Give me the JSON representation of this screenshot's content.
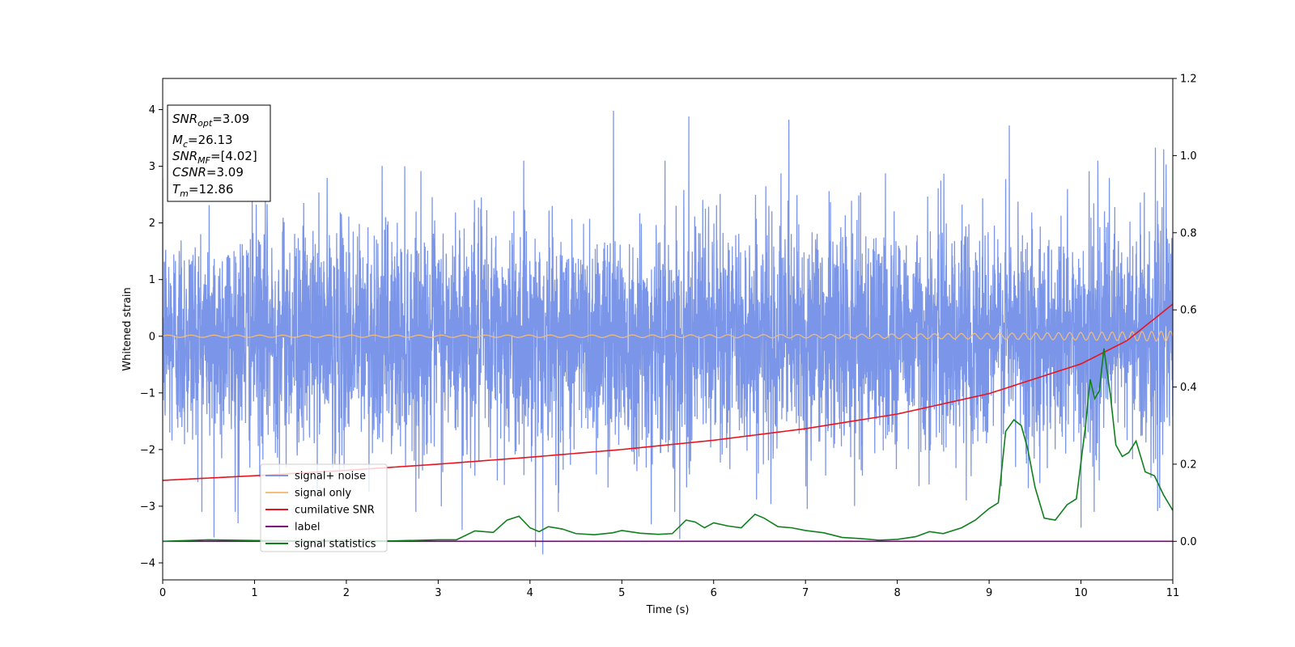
{
  "chart_data": {
    "type": "line",
    "title": "",
    "xlabel": "Time (s)",
    "ylabel": "Whitened strain",
    "xlim": [
      0,
      11
    ],
    "ylim_left": [
      -4.3,
      4.55
    ],
    "ylim_right": [
      -0.1,
      1.2
    ],
    "x_ticks": [
      "0",
      "1",
      "2",
      "3",
      "4",
      "5",
      "6",
      "7",
      "8",
      "9",
      "10",
      "11"
    ],
    "y_ticks_left": [
      "−4",
      "−3",
      "−2",
      "−1",
      "0",
      "1",
      "2",
      "3",
      "4"
    ],
    "y_ticks_right": [
      "0.0",
      "0.2",
      "0.4",
      "0.6",
      "0.8",
      "1.0",
      "1.2"
    ],
    "grid": false,
    "legend_position": "lower-left",
    "series": [
      {
        "name": "signal+ noise",
        "axis": "left",
        "color": "#7b96e8",
        "kind": "noise",
        "duration": 11,
        "std": 1.0,
        "notable_spikes": [
          [
            0.56,
            -3.55
          ],
          [
            0.82,
            -3.3
          ],
          [
            3.26,
            -3.42
          ],
          [
            4.06,
            -3.72
          ],
          [
            4.14,
            -3.85
          ],
          [
            4.91,
            3.98
          ],
          [
            5.32,
            -3.32
          ],
          [
            5.63,
            -3.58
          ],
          [
            5.73,
            3.88
          ],
          [
            6.82,
            3.82
          ],
          [
            7.02,
            -3.05
          ],
          [
            9.22,
            3.72
          ],
          [
            10.0,
            -3.38
          ],
          [
            10.81,
            3.33
          ],
          [
            10.9,
            3.3
          ]
        ]
      },
      {
        "name": "signal only",
        "axis": "left",
        "color": "#f5be79",
        "kind": "chirp",
        "amplitude_start": 0.02,
        "amplitude_end": 0.09
      },
      {
        "name": "cumilative SNR",
        "axis": "right",
        "color": "#e8141e",
        "x": [
          0,
          1,
          2,
          3,
          4,
          5,
          6,
          7,
          8,
          9,
          10,
          10.5,
          11
        ],
        "values": [
          0.158,
          0.17,
          0.184,
          0.2,
          0.218,
          0.238,
          0.262,
          0.292,
          0.33,
          0.383,
          0.46,
          0.52,
          0.615
        ]
      },
      {
        "name": "label",
        "axis": "right",
        "color": "#800080",
        "x": [
          0,
          11
        ],
        "values": [
          0.0,
          0.0
        ]
      },
      {
        "name": "signal statistics",
        "axis": "right",
        "color": "#10801e",
        "x": [
          0,
          0.5,
          1,
          1.5,
          2,
          2.5,
          3,
          3.2,
          3.4,
          3.6,
          3.75,
          3.88,
          4.0,
          4.1,
          4.2,
          4.35,
          4.5,
          4.7,
          4.9,
          5.0,
          5.2,
          5.4,
          5.55,
          5.7,
          5.8,
          5.9,
          6.0,
          6.15,
          6.3,
          6.45,
          6.55,
          6.7,
          6.85,
          7.0,
          7.2,
          7.4,
          7.6,
          7.8,
          8.0,
          8.2,
          8.35,
          8.5,
          8.7,
          8.85,
          9.0,
          9.1,
          9.18,
          9.27,
          9.35,
          9.42,
          9.5,
          9.6,
          9.72,
          9.85,
          9.95,
          10.05,
          10.1,
          10.15,
          10.2,
          10.25,
          10.32,
          10.38,
          10.45,
          10.52,
          10.6,
          10.7,
          10.8,
          10.9,
          11.0
        ],
        "values": [
          0.0,
          0.004,
          0.002,
          0.001,
          0.002,
          0.001,
          0.004,
          0.004,
          0.027,
          0.023,
          0.055,
          0.065,
          0.035,
          0.025,
          0.038,
          0.032,
          0.02,
          0.017,
          0.022,
          0.028,
          0.021,
          0.018,
          0.02,
          0.055,
          0.05,
          0.035,
          0.048,
          0.04,
          0.035,
          0.07,
          0.06,
          0.038,
          0.035,
          0.028,
          0.022,
          0.01,
          0.007,
          0.003,
          0.005,
          0.012,
          0.025,
          0.02,
          0.035,
          0.055,
          0.085,
          0.1,
          0.285,
          0.315,
          0.3,
          0.24,
          0.14,
          0.06,
          0.055,
          0.095,
          0.11,
          0.3,
          0.42,
          0.37,
          0.39,
          0.5,
          0.38,
          0.25,
          0.22,
          0.23,
          0.26,
          0.18,
          0.17,
          0.12,
          0.08
        ]
      }
    ],
    "annotation_box": {
      "position": "top-left",
      "lines": [
        {
          "parts": [
            {
              "t": "SNR",
              "italic": true
            },
            {
              "t": "opt",
              "italic": true,
              "sub": true
            },
            {
              "t": "=3.09"
            }
          ]
        },
        {
          "parts": [
            {
              "t": "M",
              "italic": true
            },
            {
              "t": "c",
              "italic": true,
              "sub": true
            },
            {
              "t": "=26.13"
            }
          ]
        },
        {
          "parts": [
            {
              "t": "SNR",
              "italic": true
            },
            {
              "t": "MF",
              "italic": true,
              "sub": true
            },
            {
              "t": "=[4.02]"
            }
          ]
        },
        {
          "parts": [
            {
              "t": "CSNR",
              "italic": true
            },
            {
              "t": "=3.09"
            }
          ]
        },
        {
          "parts": [
            {
              "t": "T",
              "italic": true
            },
            {
              "t": "m",
              "italic": true,
              "sub": true
            },
            {
              "t": "=12.86"
            }
          ]
        }
      ]
    }
  }
}
